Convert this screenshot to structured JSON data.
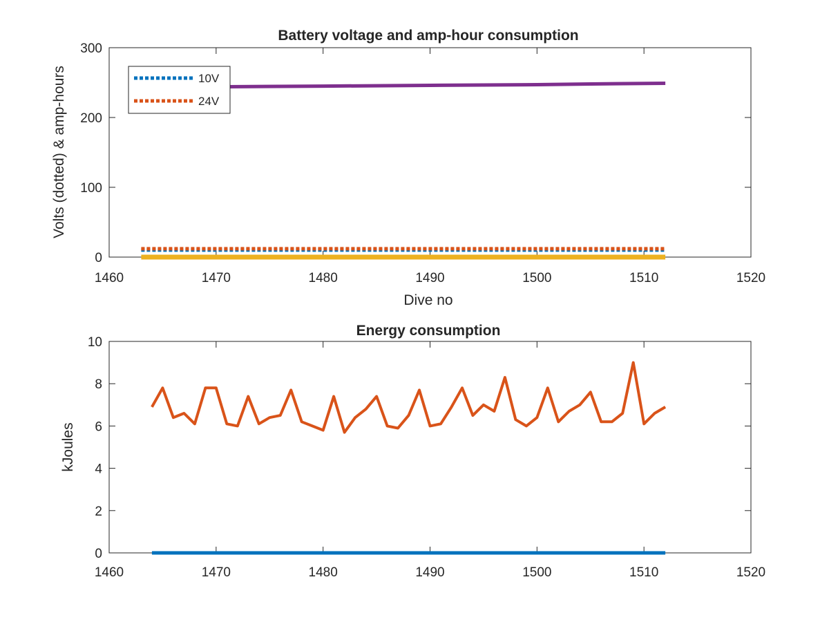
{
  "figure": {
    "background": "#ffffff"
  },
  "chart_data": [
    {
      "type": "line",
      "title": "Battery voltage and amp-hour consumption",
      "xlabel": "Dive no",
      "ylabel": "Volts (dotted) & amp-hours",
      "xlim": [
        1460,
        1520
      ],
      "ylim": [
        0,
        300
      ],
      "xticks": [
        1460,
        1470,
        1480,
        1490,
        1500,
        1510,
        1520
      ],
      "yticks": [
        0,
        100,
        200,
        300
      ],
      "grid": false,
      "legend": {
        "placement": "top-left",
        "entries": [
          "10V",
          "24V"
        ]
      },
      "series": [
        {
          "name": "10V",
          "style": "dotted",
          "color": "#0072BD",
          "x": [
            1463,
            1512
          ],
          "y": [
            10,
            10
          ]
        },
        {
          "name": "24V",
          "style": "dotted",
          "color": "#D95319",
          "x": [
            1463,
            1512
          ],
          "y": [
            12,
            12
          ]
        },
        {
          "style": "solid",
          "color": "#EDB120",
          "x": [
            1463,
            1512
          ],
          "y": [
            0,
            0
          ]
        },
        {
          "style": "solid",
          "color": "#7E2F8E",
          "x": [
            1463,
            1470,
            1480,
            1490,
            1500,
            1505,
            1512
          ],
          "y": [
            243,
            244,
            245,
            246,
            247,
            248,
            249
          ]
        }
      ]
    },
    {
      "type": "line",
      "title": "Energy consumption",
      "xlabel": "",
      "ylabel": "kJoules",
      "xlim": [
        1460,
        1520
      ],
      "ylim": [
        0,
        10
      ],
      "xticks": [
        1460,
        1470,
        1480,
        1490,
        1500,
        1510,
        1520
      ],
      "yticks": [
        0,
        2,
        4,
        6,
        8,
        10
      ],
      "grid": false,
      "series": [
        {
          "style": "solid",
          "color": "#0072BD",
          "x": [
            1464,
            1512
          ],
          "y": [
            0,
            0
          ]
        },
        {
          "style": "solid",
          "color": "#D95319",
          "x": [
            1464,
            1465,
            1466,
            1467,
            1468,
            1469,
            1470,
            1471,
            1472,
            1473,
            1474,
            1475,
            1476,
            1477,
            1478,
            1479,
            1480,
            1481,
            1482,
            1483,
            1484,
            1485,
            1486,
            1487,
            1488,
            1489,
            1490,
            1491,
            1492,
            1493,
            1494,
            1495,
            1496,
            1497,
            1498,
            1499,
            1500,
            1501,
            1502,
            1503,
            1504,
            1505,
            1506,
            1507,
            1508,
            1509,
            1510,
            1511,
            1512
          ],
          "y": [
            6.9,
            7.8,
            6.4,
            6.6,
            6.1,
            7.8,
            7.8,
            6.1,
            6.0,
            7.4,
            6.1,
            6.4,
            6.5,
            7.7,
            6.2,
            6.0,
            5.8,
            7.4,
            5.7,
            6.4,
            6.8,
            7.4,
            6.0,
            5.9,
            6.5,
            7.7,
            6.0,
            6.1,
            6.9,
            7.8,
            6.5,
            7.0,
            6.7,
            8.3,
            6.3,
            6.0,
            6.4,
            7.8,
            6.2,
            6.7,
            7.0,
            7.6,
            6.2,
            6.2,
            6.6,
            9.0,
            6.1,
            6.6,
            6.9
          ]
        }
      ]
    }
  ]
}
